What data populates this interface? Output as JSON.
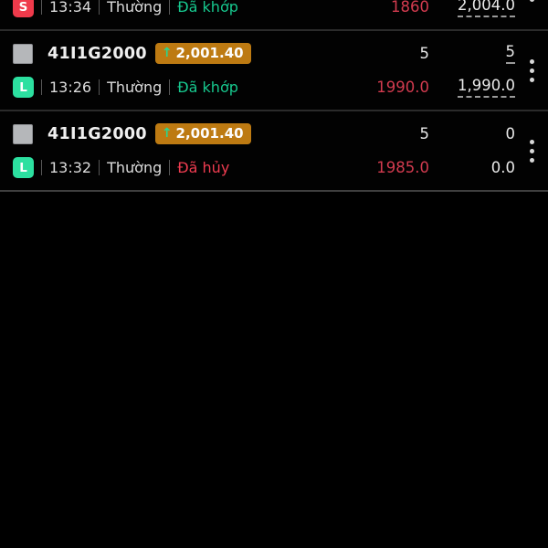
{
  "icons": {
    "arrow_up": "↑",
    "more_options": "kebab-menu"
  },
  "colors": {
    "background": "#000000",
    "price_badge_bg": "#bd7a12",
    "badge_arrow_green": "#2bd58f",
    "side_sell_red": "#ef3a4b",
    "side_long_green": "#2ce0a0",
    "status_green": "#17c88e",
    "status_red": "#ee3c50",
    "number_red": "#d23b4f",
    "number_white": "#e9e9e9",
    "divider": "#2b2b2b"
  },
  "orders": [
    {
      "symbol": "",
      "change": "",
      "qty1": "",
      "qty2": "",
      "side": "S",
      "time": "13:34",
      "order_type": "Thường",
      "status": "Đã khớp",
      "price1": "1860",
      "price2": "2,004.0"
    },
    {
      "symbol": "41I1G2000",
      "change": "2,001.40",
      "qty1": "5",
      "qty2": "5",
      "side": "L",
      "time": "13:26",
      "order_type": "Thường",
      "status": "Đã khớp",
      "price1": "1990.0",
      "price2": "1,990.0"
    },
    {
      "symbol": "41I1G2000",
      "change": "2,001.40",
      "qty1": "5",
      "qty2": "0",
      "side": "L",
      "time": "13:32",
      "order_type": "Thường",
      "status": "Đã hủy",
      "price1": "1985.0",
      "price2": "0.0"
    }
  ]
}
